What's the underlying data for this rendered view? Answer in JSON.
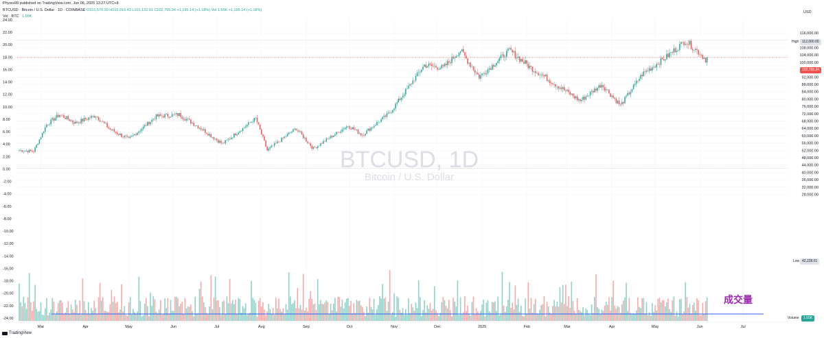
{
  "header": {
    "publisher": "Phyres99 published on TradingView.com, Jun 06, 2025 13:27 UTC+8",
    "symbol_line": "BTCUSD · Bitcoin / U.S. Dollar · 1D · COINBASE",
    "ohlc": {
      "o": "O101,570.30",
      "h": "H103,016.43",
      "l": "L101,132.91",
      "c": "C102,765.34",
      "chg": "+1,195.14 (+1.18%)",
      "vol": "Vol 1.55K",
      "chg2": "+1,195.14 (+1.18%)"
    },
    "vol_line": "Vol · BTC",
    "vol_value": "1.55K"
  },
  "watermark": {
    "title": "BTCUSD, 1D",
    "subtitle": "Bitcoin / U.S. Dollar"
  },
  "currency": "USD",
  "high_label": "High",
  "high_value": "112,000.00",
  "low_label": "Low",
  "low_value": "42,228.01",
  "last_price": "102,765.34",
  "volume_label": "Volume",
  "volume_value": "1.55K",
  "annotation": "成交量",
  "footer_logo": "TradingView",
  "colors": {
    "up": "#26a69a",
    "down": "#ef5350",
    "up_vol": "#8fd1c9",
    "down_vol": "#f7a9a7",
    "avg_line": "#2962ff",
    "last_line": "#ef5350",
    "annotation": "#9c27b0"
  },
  "chart_data": {
    "type": "candlestick",
    "period": "1D",
    "x_tick_labels": [
      "Mar",
      "Apr",
      "May",
      "Jun",
      "Jul",
      "Aug",
      "Sep",
      "Oct",
      "Nov",
      "Dec",
      "2025",
      "Feb",
      "Mar",
      "Apr",
      "May",
      "Jun",
      "Jul"
    ],
    "y_right_ticks": [
      "116,000.00",
      "112,000.00",
      "108,000.00",
      "104,000.00",
      "100,000.00",
      "96,000.00",
      "92,000.00",
      "88,000.00",
      "84,000.00",
      "80,000.00",
      "76,000.00",
      "72,000.00",
      "68,000.00",
      "64,000.00",
      "60,000.00",
      "56,000.00",
      "52,000.00",
      "48,000.00",
      "44,000.00",
      "40,000.00",
      "36,000.00",
      "32,000.00",
      "28,000.00"
    ],
    "y_left_ticks": [
      "24.00",
      "22.00",
      "20.00",
      "18.00",
      "16.00",
      "14.00",
      "12.00",
      "10.00",
      "8.00",
      "6.00",
      "4.00",
      "2.00",
      "0.00",
      "-2.00",
      "-4.00",
      "-6.00",
      "-8.00",
      "-10.00",
      "-12.00",
      "-14.00",
      "-16.00",
      "-18.00",
      "-20.00",
      "-22.00",
      "-24.00"
    ],
    "anchors": [
      {
        "date": "Feb 15",
        "close": 52000
      },
      {
        "date": "Feb 25",
        "close": 51500
      },
      {
        "date": "Mar 05",
        "close": 66000
      },
      {
        "date": "Mar 14",
        "close": 71500
      },
      {
        "date": "Mar 25",
        "close": 67000
      },
      {
        "date": "Apr 08",
        "close": 71000
      },
      {
        "date": "Apr 18",
        "close": 63500
      },
      {
        "date": "May 01",
        "close": 58000
      },
      {
        "date": "May 20",
        "close": 70500
      },
      {
        "date": "Jun 05",
        "close": 71500
      },
      {
        "date": "Jun 20",
        "close": 64000
      },
      {
        "date": "Jul 05",
        "close": 55500
      },
      {
        "date": "Jul 28",
        "close": 69500
      },
      {
        "date": "Aug 05",
        "close": 52000
      },
      {
        "date": "Aug 25",
        "close": 64000
      },
      {
        "date": "Sep 06",
        "close": 53000
      },
      {
        "date": "Sep 30",
        "close": 65500
      },
      {
        "date": "Oct 10",
        "close": 60500
      },
      {
        "date": "Oct 29",
        "close": 72500
      },
      {
        "date": "Nov 22",
        "close": 98500
      },
      {
        "date": "Dec 05",
        "close": 97000
      },
      {
        "date": "Dec 17",
        "close": 106500
      },
      {
        "date": "Dec 30",
        "close": 92000
      },
      {
        "date": "Jan 20",
        "close": 106500
      },
      {
        "date": "Feb 03",
        "close": 97500
      },
      {
        "date": "Feb 25",
        "close": 86000
      },
      {
        "date": "Mar 10",
        "close": 79000
      },
      {
        "date": "Mar 25",
        "close": 88000
      },
      {
        "date": "Apr 07",
        "close": 76500
      },
      {
        "date": "Apr 22",
        "close": 93500
      },
      {
        "date": "May 09",
        "close": 103000
      },
      {
        "date": "May 22",
        "close": 111800
      },
      {
        "date": "Jun 01",
        "close": 105000
      },
      {
        "date": "Jun 05",
        "close": 101600
      },
      {
        "date": "Jun 06",
        "close": 102765
      }
    ],
    "high_line": 112000,
    "low_line": 42228.01
  }
}
